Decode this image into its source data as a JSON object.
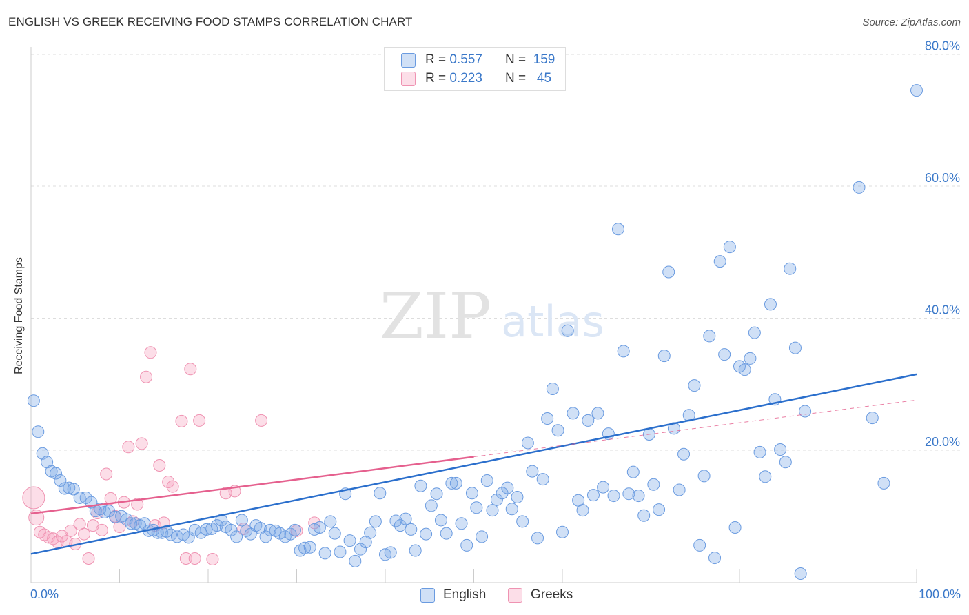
{
  "title": "ENGLISH VS GREEK RECEIVING FOOD STAMPS CORRELATION CHART",
  "source": "Source: ZipAtlas.com",
  "watermark": {
    "zip": "ZIP",
    "atlas": "atlas"
  },
  "colors": {
    "english_fill": "rgba(120,165,230,0.35)",
    "english_stroke": "#6a9be0",
    "english_line": "#2b6fcc",
    "greek_fill": "rgba(245,160,190,0.35)",
    "greek_stroke": "#ef93b2",
    "greek_line": "#e5608e",
    "tick_label": "#3a78c9",
    "grid": "#dddddd"
  },
  "legend": {
    "r_key": "R =",
    "n_key": "N =",
    "english": {
      "r": "0.557",
      "n": "159"
    },
    "greek": {
      "r": "0.223",
      "n": "45"
    }
  },
  "chart_data": {
    "type": "scatter",
    "title": "ENGLISH VS GREEK RECEIVING FOOD STAMPS CORRELATION CHART",
    "xlabel": "",
    "ylabel": "Receiving Food Stamps",
    "xlim": [
      0,
      100
    ],
    "ylim": [
      0,
      82
    ],
    "x_tick_labels": [
      "0.0%",
      "100.0%"
    ],
    "y_ticks": [
      20,
      40,
      60,
      80
    ],
    "y_tick_labels": [
      "20.0%",
      "40.0%",
      "60.0%",
      "80.0%"
    ],
    "grid": true,
    "legend_position": "top-center",
    "series": [
      {
        "name": "English",
        "r": 0.557,
        "n": 159,
        "trend": {
          "x": [
            0,
            100
          ],
          "y": [
            4.3,
            31.5
          ]
        },
        "points": [
          [
            0.3,
            27.5
          ],
          [
            0.8,
            22.8
          ],
          [
            1.3,
            19.5
          ],
          [
            1.8,
            18.2
          ],
          [
            2.3,
            16.8
          ],
          [
            2.8,
            16.5
          ],
          [
            3.3,
            15.4
          ],
          [
            3.8,
            14.2
          ],
          [
            4.3,
            14.3
          ],
          [
            4.8,
            14.1
          ],
          [
            5.5,
            12.8
          ],
          [
            6.2,
            12.8
          ],
          [
            6.8,
            12.1
          ],
          [
            7.3,
            10.8
          ],
          [
            7.8,
            11.1
          ],
          [
            8.3,
            10.6
          ],
          [
            8.8,
            10.8
          ],
          [
            9.5,
            9.9
          ],
          [
            10.2,
            10.0
          ],
          [
            10.8,
            9.5
          ],
          [
            11.3,
            8.9
          ],
          [
            11.8,
            8.9
          ],
          [
            12.3,
            8.6
          ],
          [
            12.8,
            8.9
          ],
          [
            13.3,
            7.8
          ],
          [
            13.8,
            7.9
          ],
          [
            14.3,
            7.5
          ],
          [
            14.8,
            7.5
          ],
          [
            15.3,
            7.7
          ],
          [
            15.8,
            7.2
          ],
          [
            16.5,
            6.9
          ],
          [
            17.2,
            7.2
          ],
          [
            17.8,
            6.8
          ],
          [
            18.5,
            7.9
          ],
          [
            19.2,
            7.5
          ],
          [
            19.8,
            8.0
          ],
          [
            20.4,
            8.1
          ],
          [
            21.0,
            8.6
          ],
          [
            21.5,
            9.4
          ],
          [
            22.0,
            8.4
          ],
          [
            22.6,
            7.9
          ],
          [
            23.2,
            6.9
          ],
          [
            23.8,
            9.4
          ],
          [
            24.3,
            7.8
          ],
          [
            24.8,
            7.3
          ],
          [
            25.4,
            8.6
          ],
          [
            25.9,
            8.2
          ],
          [
            26.5,
            6.9
          ],
          [
            27.0,
            7.9
          ],
          [
            27.6,
            7.8
          ],
          [
            28.1,
            7.4
          ],
          [
            28.7,
            6.9
          ],
          [
            29.3,
            7.3
          ],
          [
            29.8,
            7.9
          ],
          [
            30.4,
            4.8
          ],
          [
            30.9,
            5.2
          ],
          [
            31.5,
            5.3
          ],
          [
            32.0,
            8.0
          ],
          [
            32.6,
            8.3
          ],
          [
            33.2,
            4.4
          ],
          [
            33.8,
            9.2
          ],
          [
            34.3,
            7.4
          ],
          [
            34.9,
            4.6
          ],
          [
            35.5,
            13.4
          ],
          [
            36.0,
            6.3
          ],
          [
            36.6,
            3.2
          ],
          [
            37.2,
            5.0
          ],
          [
            37.8,
            6.1
          ],
          [
            38.3,
            7.5
          ],
          [
            38.9,
            9.2
          ],
          [
            39.4,
            13.5
          ],
          [
            40.0,
            4.2
          ],
          [
            40.6,
            4.5
          ],
          [
            41.2,
            9.3
          ],
          [
            41.7,
            8.6
          ],
          [
            42.3,
            9.6
          ],
          [
            42.9,
            8.0
          ],
          [
            43.4,
            4.8
          ],
          [
            44.0,
            14.6
          ],
          [
            44.6,
            7.3
          ],
          [
            45.2,
            11.6
          ],
          [
            45.8,
            13.4
          ],
          [
            46.3,
            9.4
          ],
          [
            46.9,
            7.4
          ],
          [
            47.5,
            15.0
          ],
          [
            48.0,
            15.0
          ],
          [
            48.6,
            8.9
          ],
          [
            49.2,
            5.6
          ],
          [
            49.8,
            13.5
          ],
          [
            50.3,
            11.3
          ],
          [
            50.9,
            6.9
          ],
          [
            51.5,
            15.4
          ],
          [
            52.1,
            10.9
          ],
          [
            52.6,
            12.5
          ],
          [
            53.2,
            13.5
          ],
          [
            53.8,
            14.3
          ],
          [
            54.3,
            11.1
          ],
          [
            54.9,
            12.9
          ],
          [
            55.5,
            9.2
          ],
          [
            56.1,
            21.1
          ],
          [
            56.6,
            16.8
          ],
          [
            57.2,
            6.7
          ],
          [
            57.8,
            15.6
          ],
          [
            58.3,
            24.8
          ],
          [
            58.9,
            29.3
          ],
          [
            59.5,
            23.0
          ],
          [
            60.0,
            7.6
          ],
          [
            60.6,
            38.1
          ],
          [
            61.2,
            25.6
          ],
          [
            61.8,
            12.4
          ],
          [
            62.3,
            10.9
          ],
          [
            62.9,
            24.5
          ],
          [
            63.5,
            13.2
          ],
          [
            64.0,
            25.6
          ],
          [
            64.6,
            14.4
          ],
          [
            65.2,
            22.5
          ],
          [
            65.8,
            13.1
          ],
          [
            66.3,
            53.5
          ],
          [
            66.9,
            35.0
          ],
          [
            67.5,
            13.4
          ],
          [
            68.0,
            16.7
          ],
          [
            68.6,
            13.1
          ],
          [
            69.2,
            10.1
          ],
          [
            69.8,
            22.4
          ],
          [
            70.3,
            14.8
          ],
          [
            70.9,
            11.0
          ],
          [
            71.5,
            34.3
          ],
          [
            72.0,
            47.0
          ],
          [
            72.6,
            23.3
          ],
          [
            73.2,
            14.0
          ],
          [
            73.7,
            19.4
          ],
          [
            74.3,
            25.3
          ],
          [
            74.9,
            29.8
          ],
          [
            75.5,
            5.6
          ],
          [
            76.0,
            16.1
          ],
          [
            76.6,
            37.3
          ],
          [
            77.2,
            3.7
          ],
          [
            77.8,
            48.6
          ],
          [
            78.3,
            34.5
          ],
          [
            78.9,
            50.8
          ],
          [
            79.5,
            8.3
          ],
          [
            80.0,
            32.7
          ],
          [
            80.6,
            32.2
          ],
          [
            81.2,
            33.9
          ],
          [
            81.7,
            37.8
          ],
          [
            82.3,
            19.7
          ],
          [
            82.9,
            16.0
          ],
          [
            83.5,
            42.1
          ],
          [
            84.0,
            27.7
          ],
          [
            84.6,
            20.1
          ],
          [
            85.2,
            18.2
          ],
          [
            85.7,
            47.5
          ],
          [
            86.3,
            35.5
          ],
          [
            86.9,
            1.3
          ],
          [
            87.4,
            25.9
          ],
          [
            93.5,
            59.8
          ],
          [
            95.0,
            24.9
          ],
          [
            96.3,
            15.0
          ],
          [
            100.0,
            74.5
          ]
        ]
      },
      {
        "name": "Greeks",
        "r": 0.223,
        "n": 45,
        "trend": {
          "x": [
            0,
            50
          ],
          "y": [
            10.4,
            19.0
          ]
        },
        "points": [
          [
            0.3,
            12.8
          ],
          [
            0.6,
            9.8
          ],
          [
            1.0,
            7.6
          ],
          [
            1.5,
            7.2
          ],
          [
            2.0,
            6.8
          ],
          [
            2.5,
            6.6
          ],
          [
            3.0,
            6.1
          ],
          [
            3.5,
            7.0
          ],
          [
            4.0,
            6.2
          ],
          [
            4.5,
            7.8
          ],
          [
            5.0,
            5.8
          ],
          [
            5.5,
            8.8
          ],
          [
            6.0,
            7.3
          ],
          [
            6.5,
            3.6
          ],
          [
            7.0,
            8.6
          ],
          [
            7.5,
            10.5
          ],
          [
            8.0,
            7.9
          ],
          [
            8.5,
            16.4
          ],
          [
            9.0,
            12.7
          ],
          [
            9.5,
            10.0
          ],
          [
            10.0,
            8.4
          ],
          [
            10.5,
            12.1
          ],
          [
            11.0,
            20.5
          ],
          [
            11.5,
            9.2
          ],
          [
            12.0,
            11.8
          ],
          [
            12.5,
            21.0
          ],
          [
            13.0,
            31.1
          ],
          [
            13.5,
            34.8
          ],
          [
            14.0,
            8.6
          ],
          [
            14.5,
            17.7
          ],
          [
            15.0,
            9.0
          ],
          [
            15.5,
            15.2
          ],
          [
            16.0,
            14.5
          ],
          [
            17.0,
            24.4
          ],
          [
            17.5,
            3.6
          ],
          [
            18.0,
            32.3
          ],
          [
            18.5,
            3.6
          ],
          [
            19.0,
            24.5
          ],
          [
            20.5,
            3.5
          ],
          [
            22.0,
            13.5
          ],
          [
            23.0,
            13.8
          ],
          [
            24.0,
            8.1
          ],
          [
            26.0,
            24.5
          ],
          [
            30.0,
            7.8
          ],
          [
            32.0,
            9.0
          ]
        ]
      }
    ]
  }
}
